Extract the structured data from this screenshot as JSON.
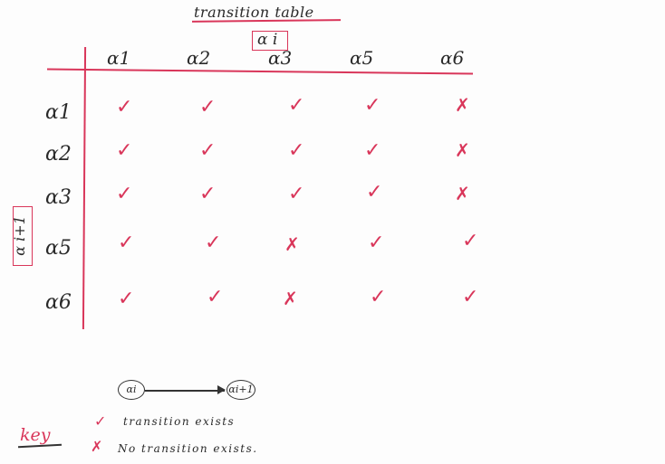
{
  "title": "transition table",
  "top_box_label": "α i",
  "side_box_label": "α i+1",
  "columns": [
    "α1",
    "α2",
    "α3",
    "α5",
    "α6"
  ],
  "rows": [
    {
      "label": "α1",
      "cells": [
        "✓",
        "✓",
        "✓",
        "✓",
        "✗"
      ]
    },
    {
      "label": "α2",
      "cells": [
        "✓",
        "✓",
        "✓",
        "✓",
        "✗"
      ]
    },
    {
      "label": "α3",
      "cells": [
        "✓",
        "✓",
        "✓",
        "✓",
        "✗"
      ]
    },
    {
      "label": "α5",
      "cells": [
        "✓",
        "✓",
        "✗",
        "✓",
        "✓"
      ]
    },
    {
      "label": "α6",
      "cells": [
        "✓",
        "✓",
        "✗",
        "✓",
        "✓"
      ]
    }
  ],
  "diagram": {
    "from_node": "αi",
    "to_node": "αi+1"
  },
  "key": {
    "label": "key",
    "items": [
      {
        "symbol": "✓",
        "text": "transition exists"
      },
      {
        "symbol": "✗",
        "text": "No transition exists."
      }
    ]
  },
  "colors": {
    "ink": "#2a2a2a",
    "accent": "#d9365a"
  }
}
